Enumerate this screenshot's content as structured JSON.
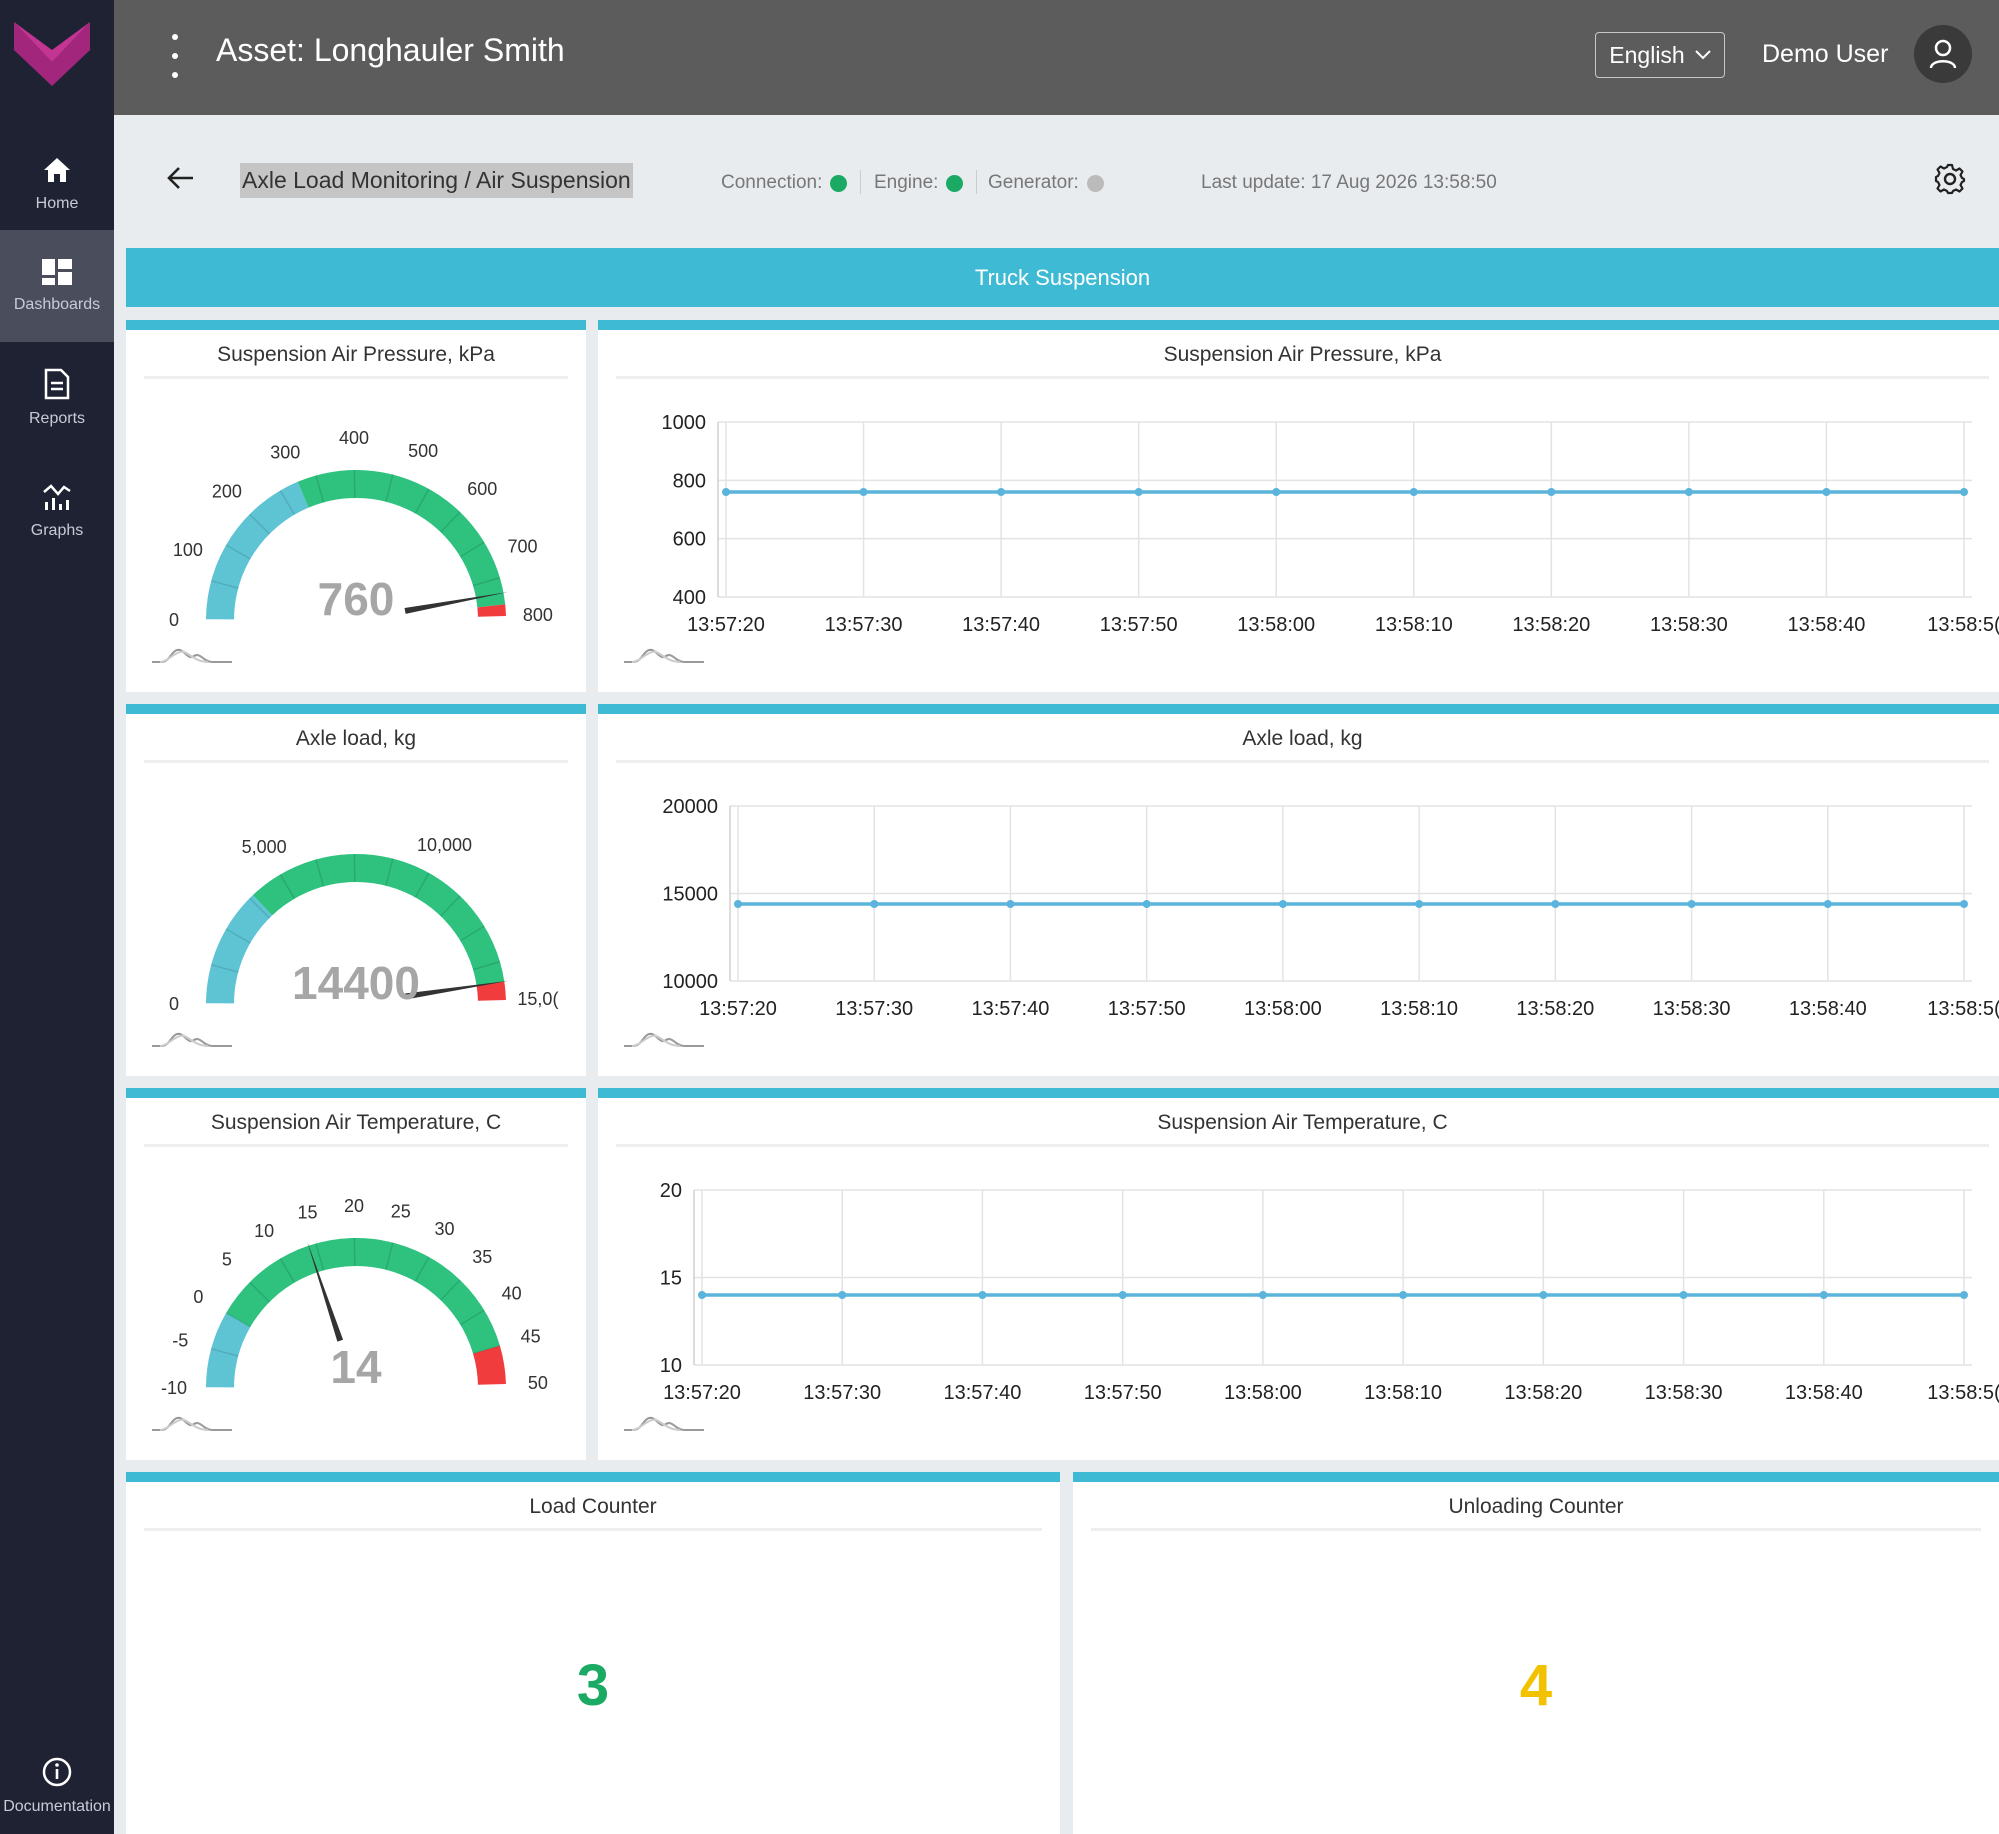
{
  "app": {
    "asset_title": "Asset: Longhauler Smith",
    "language": "English",
    "user_name": "Demo User"
  },
  "sidebar": {
    "items": [
      {
        "label": "Home",
        "icon": "home-icon"
      },
      {
        "label": "Dashboards",
        "icon": "dashboard-icon",
        "active": true
      },
      {
        "label": "Reports",
        "icon": "document-icon"
      },
      {
        "label": "Graphs",
        "icon": "graph-icon"
      }
    ],
    "footer_label": "Documentation"
  },
  "subheader": {
    "breadcrumb": "Axle Load Monitoring / Air Suspension",
    "connection_label": "Connection:",
    "engine_label": "Engine:",
    "generator_label": "Generator:",
    "last_update": "Last update: 17 Aug 2026 13:58:50",
    "status_colors": {
      "connection": "#1aaa63",
      "engine": "#1aaa63",
      "generator": "#bbbbbb"
    }
  },
  "banner": {
    "title": "Truck Suspension"
  },
  "gauges": [
    {
      "title": "Suspension Air Pressure, kPa",
      "min": 0,
      "max": 800,
      "value": 760,
      "value_label": "760",
      "ticks": [
        "0",
        "100",
        "200",
        "300",
        "400",
        "500",
        "600",
        "700",
        "800"
      ],
      "bands": [
        {
          "from": 0,
          "to": 300,
          "color": "#5ec4d4"
        },
        {
          "from": 300,
          "to": 780,
          "color": "#2ec27e"
        },
        {
          "from": 780,
          "to": 800,
          "color": "#f03c3c"
        }
      ]
    },
    {
      "title": "Axle load, kg",
      "min": 0,
      "max": 15000,
      "value": 14400,
      "value_label": "14400",
      "ticks": [
        "0",
        "5,000",
        "10,000",
        "15,0("
      ],
      "tick_values": [
        0,
        5000,
        10000,
        15000
      ],
      "bands": [
        {
          "from": 0,
          "to": 3900,
          "color": "#5ec4d4"
        },
        {
          "from": 3900,
          "to": 14400,
          "color": "#2ec27e"
        },
        {
          "from": 14400,
          "to": 15000,
          "color": "#f03c3c"
        }
      ]
    },
    {
      "title": "Suspension Air Temperature, C",
      "min": -10,
      "max": 50,
      "value": 14,
      "value_label": "14",
      "ticks": [
        "-10",
        "-5",
        "0",
        "5",
        "10",
        "15",
        "20",
        "25",
        "30",
        "35",
        "40",
        "45",
        "50"
      ],
      "bands": [
        {
          "from": -10,
          "to": 0,
          "color": "#5ec4d4"
        },
        {
          "from": 0,
          "to": 45,
          "color": "#2ec27e"
        },
        {
          "from": 45,
          "to": 50,
          "color": "#f03c3c"
        }
      ]
    }
  ],
  "chart_data": [
    {
      "type": "line",
      "title": "Suspension Air Pressure, kPa",
      "x": [
        "13:57:20",
        "13:57:30",
        "13:57:40",
        "13:57:50",
        "13:58:00",
        "13:58:10",
        "13:58:20",
        "13:58:30",
        "13:58:40",
        "13:58:5("
      ],
      "series": [
        {
          "values": [
            760,
            760,
            760,
            760,
            760,
            760,
            760,
            760,
            760,
            760
          ]
        }
      ],
      "ylim": [
        400,
        1000
      ],
      "yticks": [
        "1000",
        "800",
        "600",
        "400"
      ],
      "color": "#5ab4dc",
      "grid": true
    },
    {
      "type": "line",
      "title": "Axle load, kg",
      "x": [
        "13:57:20",
        "13:57:30",
        "13:57:40",
        "13:57:50",
        "13:58:00",
        "13:58:10",
        "13:58:20",
        "13:58:30",
        "13:58:40",
        "13:58:5("
      ],
      "series": [
        {
          "values": [
            14400,
            14400,
            14400,
            14400,
            14400,
            14400,
            14400,
            14400,
            14400,
            14400
          ]
        }
      ],
      "ylim": [
        10000,
        20000
      ],
      "yticks": [
        "20000",
        "15000",
        "10000"
      ],
      "color": "#5ab4dc",
      "grid": true
    },
    {
      "type": "line",
      "title": "Suspension Air Temperature, C",
      "x": [
        "13:57:20",
        "13:57:30",
        "13:57:40",
        "13:57:50",
        "13:58:00",
        "13:58:10",
        "13:58:20",
        "13:58:30",
        "13:58:40",
        "13:58:5("
      ],
      "series": [
        {
          "values": [
            14,
            14,
            14,
            14,
            14,
            14,
            14,
            14,
            14,
            14
          ]
        }
      ],
      "ylim": [
        10,
        20
      ],
      "yticks": [
        "20",
        "15",
        "10"
      ],
      "color": "#5ab4dc",
      "grid": true
    }
  ],
  "counters": [
    {
      "title": "Load Counter",
      "value": "3",
      "color": "#1aaa63"
    },
    {
      "title": "Unloading Counter",
      "value": "4",
      "color": "#f2c200"
    }
  ]
}
